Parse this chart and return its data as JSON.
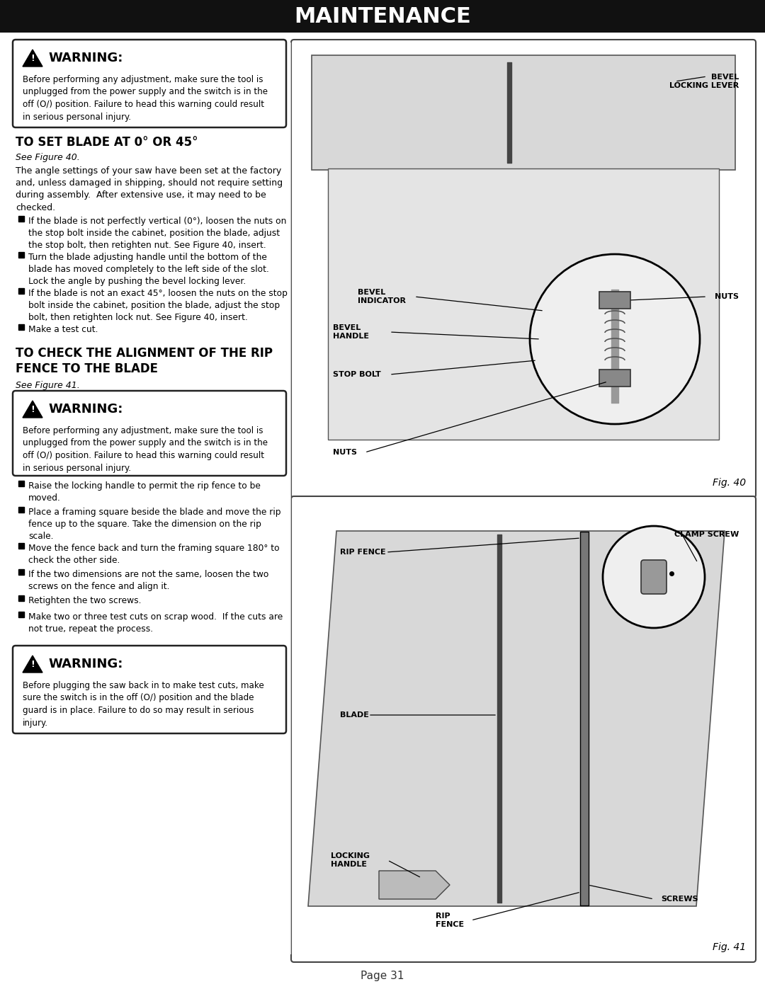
{
  "title": "MAINTENANCE",
  "page_number": "Page 31",
  "bg_color": "#ffffff",
  "title_bg": "#111111",
  "title_text_color": "#ffffff",
  "warning_text1": "Before performing any adjustment, make sure the tool is\nunplugged from the power supply and the switch is in the\noff (O/) position. Failure to head this warning could result\nin serious personal injury.",
  "warning_text2": "Before performing any adjustment, make sure the tool is\nunplugged from the power supply and the switch is in the\noff (O/) position. Failure to head this warning could result\nin serious personal injury.",
  "warning_text3": "Before plugging the saw back in to make test cuts, make\nsure the switch is in the off (O/) position and the blade\nguard is in place. Failure to do so may result in serious\ninjury.",
  "section1_title": "TO SET BLADE AT 0° OR 45°",
  "section1_fig": "See Figure 40.",
  "section1_body": "The angle settings of your saw have been set at the factory\nand, unless damaged in shipping, should not require setting\nduring assembly.  After extensive use, it may need to be\nchecked.",
  "section1_bullets": [
    "If the blade is not perfectly vertical (0°), loosen the nuts on\nthe stop bolt inside the cabinet, position the blade, adjust\nthe stop bolt, then retighten nut. See Figure 40, insert.",
    "Turn the blade adjusting handle until the bottom of the\nblade has moved completely to the left side of the slot.\nLock the angle by pushing the bevel locking lever.",
    "If the blade is not an exact 45°, loosen the nuts on the stop\nbolt inside the cabinet, position the blade, adjust the stop\nbolt, then retighten lock nut. See Figure 40, insert.",
    "Make a test cut."
  ],
  "section2_title1": "TO CHECK THE ALIGNMENT OF THE RIP",
  "section2_title2": "FENCE TO THE BLADE",
  "section2_fig": "See Figure 41.",
  "section2_bullets": [
    "Raise the locking handle to permit the rip fence to be\nmoved.",
    "Place a framing square beside the blade and move the rip\nfence up to the square. Take the dimension on the rip\nscale.",
    "Move the fence back and turn the framing square 180° to\ncheck the other side.",
    "If the two dimensions are not the same, loosen the two\nscrews on the fence and align it.",
    "Retighten the two screws.",
    "Make two or three test cuts on scrap wood.  If the cuts are\nnot true, repeat the process."
  ],
  "fig40_caption": "Fig. 40",
  "fig41_caption": "Fig. 41",
  "fig40_label_bevel_locking": "BEVEL\nLOCKING LEVER",
  "fig40_label_bevel_indicator": "BEVEL\nINDICATOR",
  "fig40_label_nuts_top": "NUTS",
  "fig40_label_bevel_handle": "BEVEL\nHANDLE",
  "fig40_label_stop_bolt": "STOP BOLT",
  "fig40_label_nuts_bot": "NUTS",
  "fig41_label_clamp_screw": "CLAMP SCREW",
  "fig41_label_rip_fence_top": "RIP FENCE",
  "fig41_label_blade": "BLADE",
  "fig41_label_locking_handle": "LOCKING\nHANDLE",
  "fig41_label_screws": "SCREWS",
  "fig41_label_rip_fence_bot": "RIP\nFENCE"
}
